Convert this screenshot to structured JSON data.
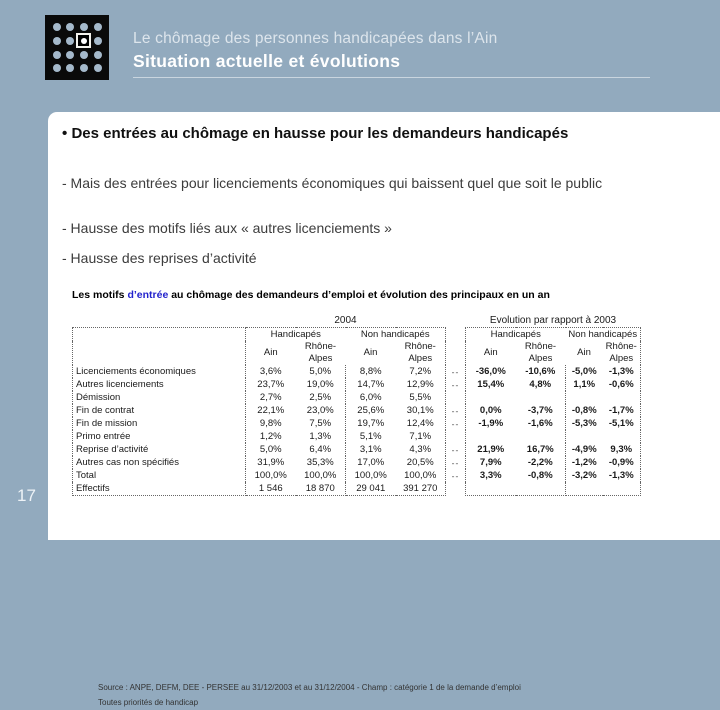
{
  "colors": {
    "slide_background": "#92AABE",
    "panel_background": "#FFFFFF",
    "logo_background": "#0A0A0A",
    "title_text": "#FFFFFF",
    "table_highlight_blue": "#2222CC"
  },
  "header": {
    "title_line1": "Le chômage des personnes handicapées dans l’Ain",
    "title_line2": "Situation actuelle et évolutions"
  },
  "page_number": "17",
  "content": {
    "main_bullet": {
      "marker": "•",
      "text": "Des entrées au chômage en hausse pour les demandeurs handicapés"
    },
    "sub_bullets": [
      "- Mais des entrées pour licenciements économiques qui baissent quel que soit le public",
      "- Hausse des motifs liés aux « autres licenciements »",
      "- Hausse des reprises d’activité"
    ]
  },
  "table": {
    "title": {
      "prefix": "Les motifs ",
      "highlight": "d’entrée",
      "suffix": " au chômage des demandeurs d’emploi et évolution des principaux en un an"
    },
    "group_headers": [
      "2004",
      "Evolution par rapport à 2003"
    ],
    "sub_headers": [
      "Handicapés",
      "Non handicapés"
    ],
    "col_headers": [
      "Ain",
      "Rhône-Alpes"
    ],
    "dash_mark": "--",
    "rows": [
      {
        "label": "Licenciements économiques",
        "y2004": [
          "3,6%",
          "5,0%",
          "8,8%",
          "7,2%"
        ],
        "dash": true,
        "evo": [
          "-36,0%",
          "-10,6%",
          "-5,0%",
          "-1,3%"
        ]
      },
      {
        "label": "Autres licenciements",
        "y2004": [
          "23,7%",
          "19,0%",
          "14,7%",
          "12,9%"
        ],
        "dash": true,
        "evo": [
          "15,4%",
          "4,8%",
          "1,1%",
          "-0,6%"
        ]
      },
      {
        "label": "Démission",
        "y2004": [
          "2,7%",
          "2,5%",
          "6,0%",
          "5,5%"
        ],
        "dash": false,
        "evo": [
          "",
          "",
          "",
          ""
        ]
      },
      {
        "label": "Fin de contrat",
        "y2004": [
          "22,1%",
          "23,0%",
          "25,6%",
          "30,1%"
        ],
        "dash": true,
        "evo": [
          "0,0%",
          "-3,7%",
          "-0,8%",
          "-1,7%"
        ]
      },
      {
        "label": "Fin de mission",
        "y2004": [
          "9,8%",
          "7,5%",
          "19,7%",
          "12,4%"
        ],
        "dash": true,
        "evo": [
          "-1,9%",
          "-1,6%",
          "-5,3%",
          "-5,1%"
        ]
      },
      {
        "label": "Primo entrée",
        "y2004": [
          "1,2%",
          "1,3%",
          "5,1%",
          "7,1%"
        ],
        "dash": false,
        "evo": [
          "",
          "",
          "",
          ""
        ]
      },
      {
        "label": "Reprise d’activité",
        "y2004": [
          "5,0%",
          "6,4%",
          "3,1%",
          "4,3%"
        ],
        "dash": true,
        "evo": [
          "21,9%",
          "16,7%",
          "-4,9%",
          "9,3%"
        ]
      },
      {
        "label": "Autres cas non spécifiés",
        "y2004": [
          "31,9%",
          "35,3%",
          "17,0%",
          "20,5%"
        ],
        "dash": true,
        "evo": [
          "7,9%",
          "-2,2%",
          "-1,2%",
          "-0,9%"
        ]
      },
      {
        "label": "Total",
        "y2004": [
          "100,0%",
          "100,0%",
          "100,0%",
          "100,0%"
        ],
        "dash": true,
        "evo": [
          "3,3%",
          "-0,8%",
          "-3,2%",
          "-1,3%"
        ]
      },
      {
        "label": "Effectifs",
        "y2004": [
          "1 546",
          "18 870",
          "29 041",
          "391 270"
        ],
        "dash": false,
        "evo": [
          "",
          "",
          "",
          ""
        ]
      }
    ],
    "source_line1": "Source : ANPE, DEFM, DEE - PERSEE au 31/12/2003 et au 31/12/2004 - Champ : catégorie 1 de la demande d’emploi",
    "source_line2": "Toutes priorités de handicap"
  }
}
